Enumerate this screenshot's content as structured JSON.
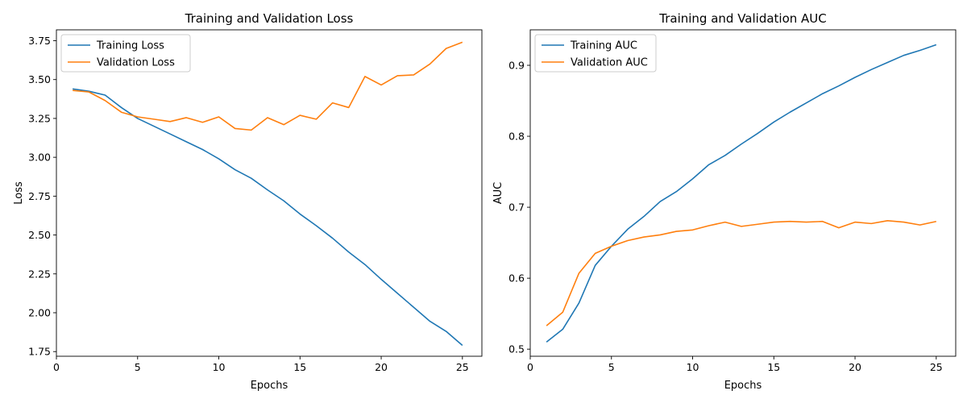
{
  "chart_data": [
    {
      "type": "line",
      "title": "Training and Validation Loss",
      "xlabel": "Epochs",
      "ylabel": "Loss",
      "xlim": [
        0,
        26.2
      ],
      "ylim": [
        1.72,
        3.82
      ],
      "xticks": [
        0,
        5,
        10,
        15,
        20,
        25
      ],
      "yticks": [
        1.75,
        2.0,
        2.25,
        2.5,
        2.75,
        3.0,
        3.25,
        3.5,
        3.75
      ],
      "ytick_labels": [
        "1.75",
        "2.00",
        "2.25",
        "2.50",
        "2.75",
        "3.00",
        "3.25",
        "3.50",
        "3.75"
      ],
      "legend_position": "top-left",
      "grid": false,
      "x": [
        1,
        2,
        3,
        4,
        5,
        6,
        7,
        8,
        9,
        10,
        11,
        12,
        13,
        14,
        15,
        16,
        17,
        18,
        19,
        20,
        21,
        22,
        23,
        24,
        25
      ],
      "series": [
        {
          "name": "Training Loss",
          "color": "#1f77b4",
          "values": [
            3.44,
            3.425,
            3.4,
            3.32,
            3.25,
            3.2,
            3.15,
            3.1,
            3.05,
            2.99,
            2.92,
            2.865,
            2.79,
            2.72,
            2.635,
            2.56,
            2.48,
            2.39,
            2.31,
            2.215,
            2.125,
            2.035,
            1.945,
            1.88,
            1.79
          ]
        },
        {
          "name": "Validation Loss",
          "color": "#ff7f0e",
          "values": [
            3.43,
            3.42,
            3.365,
            3.29,
            3.26,
            3.245,
            3.23,
            3.255,
            3.225,
            3.26,
            3.185,
            3.175,
            3.255,
            3.21,
            3.27,
            3.245,
            3.35,
            3.32,
            3.52,
            3.465,
            3.525,
            3.53,
            3.6,
            3.7,
            3.74
          ]
        }
      ]
    },
    {
      "type": "line",
      "title": "Training and Validation AUC",
      "xlabel": "Epochs",
      "ylabel": "AUC",
      "xlim": [
        0,
        26.2
      ],
      "ylim": [
        0.49,
        0.95
      ],
      "xticks": [
        0,
        5,
        10,
        15,
        20,
        25
      ],
      "yticks": [
        0.5,
        0.6,
        0.7,
        0.8,
        0.9
      ],
      "ytick_labels": [
        "0.5",
        "0.6",
        "0.7",
        "0.8",
        "0.9"
      ],
      "legend_position": "top-left",
      "grid": false,
      "x": [
        1,
        2,
        3,
        4,
        5,
        6,
        7,
        8,
        9,
        10,
        11,
        12,
        13,
        14,
        15,
        16,
        17,
        18,
        19,
        20,
        21,
        22,
        23,
        24,
        25
      ],
      "series": [
        {
          "name": "Training AUC",
          "color": "#1f77b4",
          "values": [
            0.51,
            0.528,
            0.565,
            0.618,
            0.645,
            0.669,
            0.687,
            0.708,
            0.722,
            0.74,
            0.76,
            0.773,
            0.789,
            0.804,
            0.82,
            0.834,
            0.847,
            0.86,
            0.871,
            0.883,
            0.894,
            0.904,
            0.914,
            0.921,
            0.929
          ]
        },
        {
          "name": "Validation AUC",
          "color": "#ff7f0e",
          "values": [
            0.533,
            0.552,
            0.607,
            0.635,
            0.645,
            0.653,
            0.658,
            0.661,
            0.666,
            0.668,
            0.674,
            0.679,
            0.673,
            0.676,
            0.679,
            0.68,
            0.679,
            0.68,
            0.671,
            0.679,
            0.677,
            0.681,
            0.679,
            0.675,
            0.68
          ]
        }
      ]
    }
  ]
}
